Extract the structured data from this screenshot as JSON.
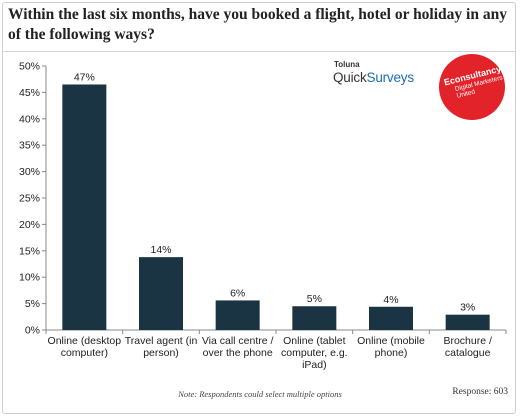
{
  "header": {
    "title": "Within the last six months, have you booked a flight, hotel or holiday in any of the following ways?"
  },
  "logos": {
    "toluna_top": "Toluna",
    "toluna_main_a": "Quick",
    "toluna_main_b": "Surveys",
    "econsultancy_name": "Econsultancy",
    "econsultancy_tagline": "Digital Marketers United"
  },
  "footer": {
    "note": "Note: Respondents could select multiple options",
    "response": "Response: 603"
  },
  "chart_data": {
    "type": "bar",
    "categories": [
      [
        "Online (desktop",
        "computer)"
      ],
      [
        "Travel agent (in",
        "person)"
      ],
      [
        "Via call centre /",
        "over the phone"
      ],
      [
        "Online (tablet",
        "computer, e.g.",
        "iPad)"
      ],
      [
        "Online (mobile",
        "phone)"
      ],
      [
        "Brochure /",
        "catalogue"
      ]
    ],
    "values": [
      47,
      14,
      6,
      5,
      4,
      3
    ],
    "heights": [
      46.5,
      13.8,
      5.6,
      4.5,
      4.4,
      2.9
    ],
    "data_labels": [
      "47%",
      "14%",
      "6%",
      "5%",
      "4%",
      "3%"
    ],
    "yticks": [
      "0%",
      "5%",
      "10%",
      "15%",
      "20%",
      "25%",
      "30%",
      "35%",
      "40%",
      "45%",
      "50%"
    ],
    "ylim": [
      0,
      50
    ],
    "bar_color": "#1b3444",
    "grid": false
  }
}
